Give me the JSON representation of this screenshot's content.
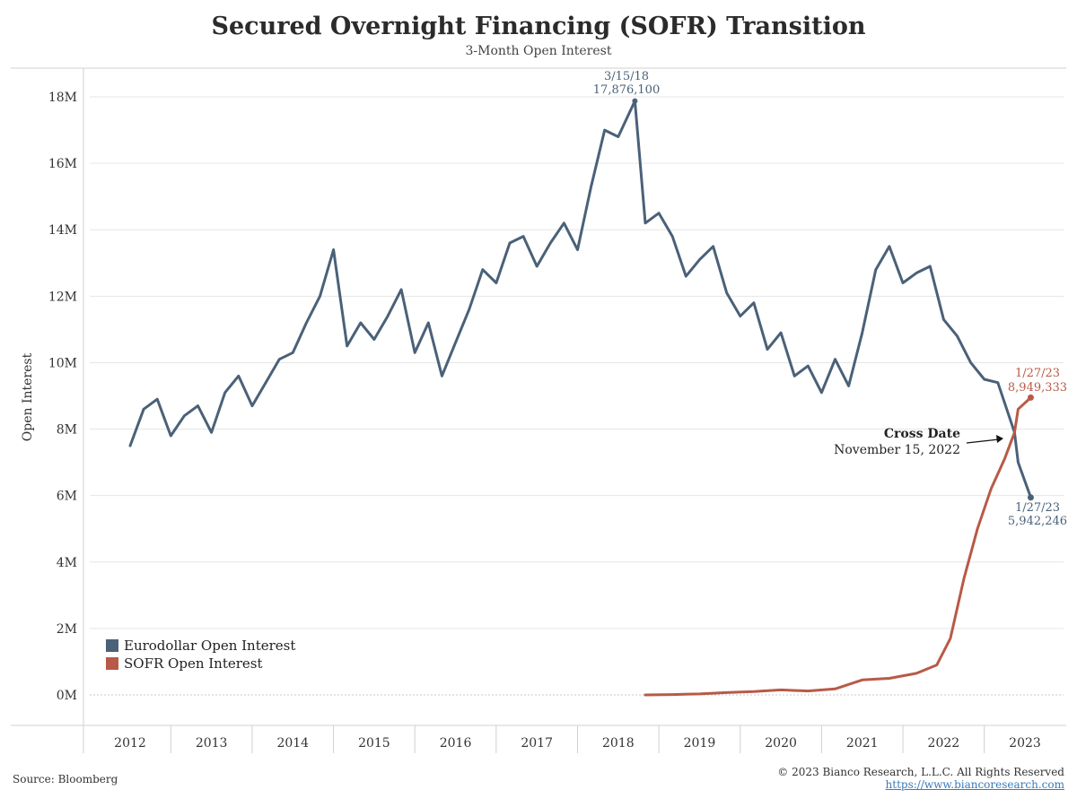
{
  "header": {
    "title": "Secured Overnight Financing (SOFR) Transition",
    "subtitle": "3-Month Open Interest"
  },
  "footer": {
    "source": "Source: Bloomberg",
    "copyright": "© 2023 Bianco Research, L.L.C. All Rights Reserved",
    "link": "https://www.biancoresearch.com"
  },
  "colors": {
    "eurodollar": "#4a6178",
    "sofr": "#b85a47",
    "grid": "#e6e6e6"
  },
  "chart_data": {
    "type": "line",
    "title": "Secured Overnight Financing (SOFR) Transition",
    "subtitle": "3-Month Open Interest",
    "ylabel": "Open Interest",
    "xlabel": "",
    "ylim": [
      0,
      18000000
    ],
    "y_ticks": [
      {
        "value": 0,
        "label": "0M"
      },
      {
        "value": 2000000,
        "label": "2M"
      },
      {
        "value": 4000000,
        "label": "4M"
      },
      {
        "value": 6000000,
        "label": "6M"
      },
      {
        "value": 8000000,
        "label": "8M"
      },
      {
        "value": 10000000,
        "label": "10M"
      },
      {
        "value": 12000000,
        "label": "12M"
      },
      {
        "value": 14000000,
        "label": "14M"
      },
      {
        "value": 16000000,
        "label": "16M"
      },
      {
        "value": 18000000,
        "label": "18M"
      }
    ],
    "x_ticks": [
      "2012",
      "2013",
      "2014",
      "2015",
      "2016",
      "2017",
      "2018",
      "2019",
      "2020",
      "2021",
      "2022",
      "2023"
    ],
    "legend_position": "bottom-left",
    "series": [
      {
        "name": "Eurodollar Open Interest",
        "color": "#4a6178",
        "x": [
          "2012-01",
          "2012-03",
          "2012-05",
          "2012-07",
          "2012-09",
          "2012-11",
          "2013-01",
          "2013-03",
          "2013-05",
          "2013-07",
          "2013-09",
          "2013-11",
          "2014-01",
          "2014-03",
          "2014-05",
          "2014-07",
          "2014-09",
          "2014-11",
          "2015-01",
          "2015-03",
          "2015-05",
          "2015-07",
          "2015-09",
          "2015-11",
          "2016-01",
          "2016-03",
          "2016-05",
          "2016-07",
          "2016-09",
          "2016-11",
          "2017-01",
          "2017-03",
          "2017-05",
          "2017-07",
          "2017-09",
          "2017-11",
          "2018-01",
          "2018-03-15",
          "2018-05",
          "2018-07",
          "2018-09",
          "2018-11",
          "2019-01",
          "2019-03",
          "2019-05",
          "2019-07",
          "2019-09",
          "2019-11",
          "2020-01",
          "2020-03",
          "2020-05",
          "2020-07",
          "2020-09",
          "2020-11",
          "2021-01",
          "2021-03",
          "2021-05",
          "2021-07",
          "2021-09",
          "2021-11",
          "2022-01",
          "2022-03",
          "2022-05",
          "2022-07",
          "2022-09",
          "2022-11-15",
          "2022-12",
          "2023-01-27"
        ],
        "values": [
          7500000,
          8600000,
          8900000,
          7800000,
          8400000,
          8700000,
          7900000,
          9100000,
          9600000,
          8700000,
          9400000,
          10100000,
          10300000,
          11200000,
          12000000,
          13400000,
          10500000,
          11200000,
          10700000,
          11400000,
          12200000,
          10300000,
          11200000,
          9600000,
          10600000,
          11600000,
          12800000,
          12400000,
          13600000,
          13800000,
          12900000,
          13600000,
          14200000,
          13400000,
          15300000,
          17000000,
          16800000,
          17876100,
          14200000,
          14500000,
          13800000,
          12600000,
          13100000,
          13500000,
          12100000,
          11400000,
          11800000,
          10400000,
          10900000,
          9600000,
          9900000,
          9100000,
          10100000,
          9300000,
          10900000,
          12800000,
          13500000,
          12400000,
          12700000,
          12900000,
          11300000,
          10800000,
          10000000,
          9500000,
          9400000,
          7900000,
          7000000,
          5942246
        ]
      },
      {
        "name": "SOFR Open Interest",
        "color": "#b85a47",
        "x": [
          "2018-05",
          "2018-09",
          "2019-01",
          "2019-05",
          "2019-09",
          "2020-01",
          "2020-05",
          "2020-09",
          "2021-01",
          "2021-05",
          "2021-09",
          "2021-12",
          "2022-02",
          "2022-04",
          "2022-06",
          "2022-08",
          "2022-10",
          "2022-11-15",
          "2022-12",
          "2023-01-27"
        ],
        "values": [
          0,
          10000,
          30000,
          70000,
          100000,
          150000,
          120000,
          180000,
          450000,
          500000,
          650000,
          900000,
          1700000,
          3500000,
          5000000,
          6200000,
          7100000,
          7900000,
          8600000,
          8949333
        ]
      }
    ],
    "annotations": [
      {
        "date": "3/15/18",
        "value": "17,876,100"
      },
      {
        "date": "1/27/23",
        "value": "8,949,333"
      },
      {
        "date": "1/27/23",
        "value": "5,942,246"
      },
      {
        "title": "Cross Date",
        "text": "November 15, 2022"
      }
    ]
  }
}
